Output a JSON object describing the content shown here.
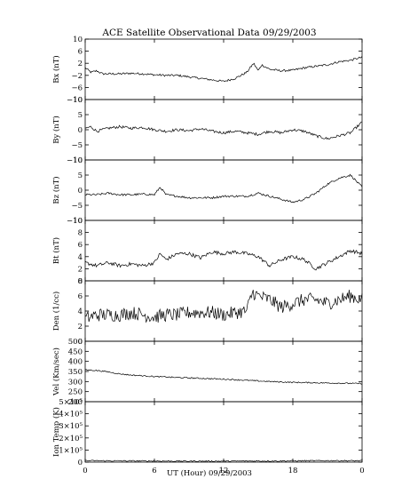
{
  "chart_data": {
    "type": "line",
    "title": "ACE Satellite Observational Data   09/29/2003",
    "xlabel": "UT (Hour)   09/29/2003",
    "x_ticks": [
      "0",
      "6",
      "12",
      "18",
      "0"
    ],
    "xlim": [
      0,
      24
    ],
    "grid": false,
    "panels": [
      {
        "ylabel": "Bx (nT)",
        "ylim": [
          -10,
          10
        ],
        "y_ticks": [
          "10",
          "6",
          "2",
          "−2",
          "−6",
          "−10"
        ],
        "y_tick_values": [
          10,
          6,
          2,
          -2,
          -6,
          -10
        ],
        "x": [
          0,
          0.5,
          1,
          1.5,
          2,
          3,
          4,
          5,
          6,
          7,
          8,
          9,
          10,
          11,
          12,
          13,
          14,
          14.6,
          15,
          15.3,
          16,
          17,
          18,
          19,
          20,
          21,
          22,
          23,
          24
        ],
        "y": [
          0.5,
          -1,
          -0.5,
          -1.5,
          -1.5,
          -1.5,
          -1.3,
          -1.5,
          -1.8,
          -2,
          -2,
          -2.5,
          -3,
          -3.5,
          -4,
          -3,
          -1,
          2,
          -0.5,
          1.5,
          0,
          -0.5,
          -0.3,
          0.5,
          1,
          1.5,
          2.5,
          3,
          4
        ],
        "noise": 0.35
      },
      {
        "ylabel": "By (nT)",
        "ylim": [
          -10,
          10
        ],
        "y_ticks": [
          "10",
          "5",
          "0",
          "−5",
          "−10"
        ],
        "y_tick_values": [
          10,
          5,
          0,
          -5,
          -10
        ],
        "x": [
          0,
          0.5,
          1,
          2,
          3,
          4,
          5,
          6,
          7,
          8,
          9,
          10,
          11,
          12,
          13,
          14,
          15,
          16,
          17,
          18,
          19,
          20,
          21,
          22,
          23,
          24
        ],
        "y": [
          0.5,
          1,
          -0.5,
          0.5,
          1,
          0.5,
          0.8,
          0,
          -0.5,
          0,
          -0.3,
          0.3,
          -0.5,
          -1,
          -0.5,
          -1,
          -1.5,
          -0.5,
          -1,
          0,
          -0.5,
          -2,
          -3,
          -2,
          -1,
          2.5
        ],
        "noise": 0.45
      },
      {
        "ylabel": "Bz (nT)",
        "ylim": [
          -10,
          10
        ],
        "y_ticks": [
          "10",
          "5",
          "0",
          "−5",
          "−10"
        ],
        "y_tick_values": [
          10,
          5,
          0,
          -5,
          -10
        ],
        "x": [
          0,
          1,
          2,
          3,
          4,
          5,
          6,
          6.5,
          7,
          8,
          9,
          10,
          11,
          12,
          13,
          14,
          15,
          16,
          17,
          18,
          19,
          20,
          21,
          22,
          23,
          24
        ],
        "y": [
          -1.5,
          -1.5,
          -1,
          -1.5,
          -1.5,
          -1.3,
          -1.5,
          1,
          -1.5,
          -2,
          -2.5,
          -2.5,
          -2.5,
          -2,
          -2,
          -2,
          -1,
          -2,
          -3,
          -4,
          -3,
          -1,
          2,
          4,
          5,
          1
        ],
        "noise": 0.35
      },
      {
        "ylabel": "Bt (nT)",
        "ylim": [
          0,
          10
        ],
        "y_ticks": [
          "10",
          "8",
          "6",
          "4",
          "2",
          "0"
        ],
        "y_tick_values": [
          10,
          8,
          6,
          4,
          2,
          0
        ],
        "x": [
          0,
          1,
          2,
          3,
          4,
          5,
          6,
          6.5,
          7,
          8,
          9,
          10,
          11,
          12,
          13,
          14,
          15,
          16,
          17,
          18,
          19,
          20,
          21,
          22,
          23,
          24
        ],
        "y": [
          3,
          2.5,
          3,
          2.5,
          2.8,
          2.5,
          3,
          4.5,
          3.5,
          4.5,
          4.5,
          3.8,
          4.8,
          4.5,
          4.8,
          4.5,
          4,
          2.5,
          3.5,
          4,
          3.5,
          2,
          3,
          4,
          5,
          4.5
        ],
        "noise": 0.3
      },
      {
        "ylabel": "Den (1/cc)",
        "ylim": [
          0,
          8
        ],
        "y_ticks": [
          "8",
          "6",
          "4",
          "2",
          "0"
        ],
        "y_tick_values": [
          8,
          6,
          4,
          2,
          0
        ],
        "x": [
          0,
          1,
          2,
          3,
          4,
          5,
          6,
          7,
          8,
          9,
          10,
          11,
          12,
          13,
          14,
          14.5,
          15,
          16,
          17,
          18,
          19,
          20,
          21,
          22,
          23,
          24
        ],
        "y": [
          3,
          3.5,
          3.5,
          3.5,
          3.8,
          3.5,
          3.2,
          3.5,
          3.5,
          3.8,
          3.8,
          3.8,
          3.5,
          3.8,
          4,
          6.5,
          6,
          5.5,
          4.5,
          5,
          5.5,
          5.5,
          5,
          5.5,
          6,
          5.5
        ],
        "noise": 0.9
      },
      {
        "ylabel": "Vel (Km/sec)",
        "ylim": [
          200,
          500
        ],
        "y_ticks": [
          "500",
          "450",
          "400",
          "350",
          "300",
          "250",
          "200"
        ],
        "y_tick_values": [
          500,
          450,
          400,
          350,
          300,
          250,
          200
        ],
        "x": [
          0,
          1,
          2,
          3,
          4,
          6,
          8,
          10,
          12,
          14,
          16,
          18,
          20,
          22,
          24
        ],
        "y": [
          358,
          355,
          348,
          338,
          332,
          325,
          320,
          316,
          312,
          306,
          300,
          296,
          294,
          292,
          290
        ],
        "noise": 3
      },
      {
        "ylabel": "Ion Temp (K)",
        "ylim": [
          0,
          500000
        ],
        "y_ticks": [
          "5×10⁵",
          "4×10⁵",
          "3×10⁵",
          "2×10⁵",
          "1×10⁵",
          "0"
        ],
        "y_tick_values": [
          500000,
          400000,
          300000,
          200000,
          100000,
          0
        ],
        "x": [
          0,
          3,
          6,
          9,
          12,
          15,
          18,
          21,
          24
        ],
        "y": [
          12000,
          10000,
          9000,
          8000,
          8000,
          9000,
          10000,
          12000,
          11000
        ],
        "noise": 5000
      }
    ]
  }
}
